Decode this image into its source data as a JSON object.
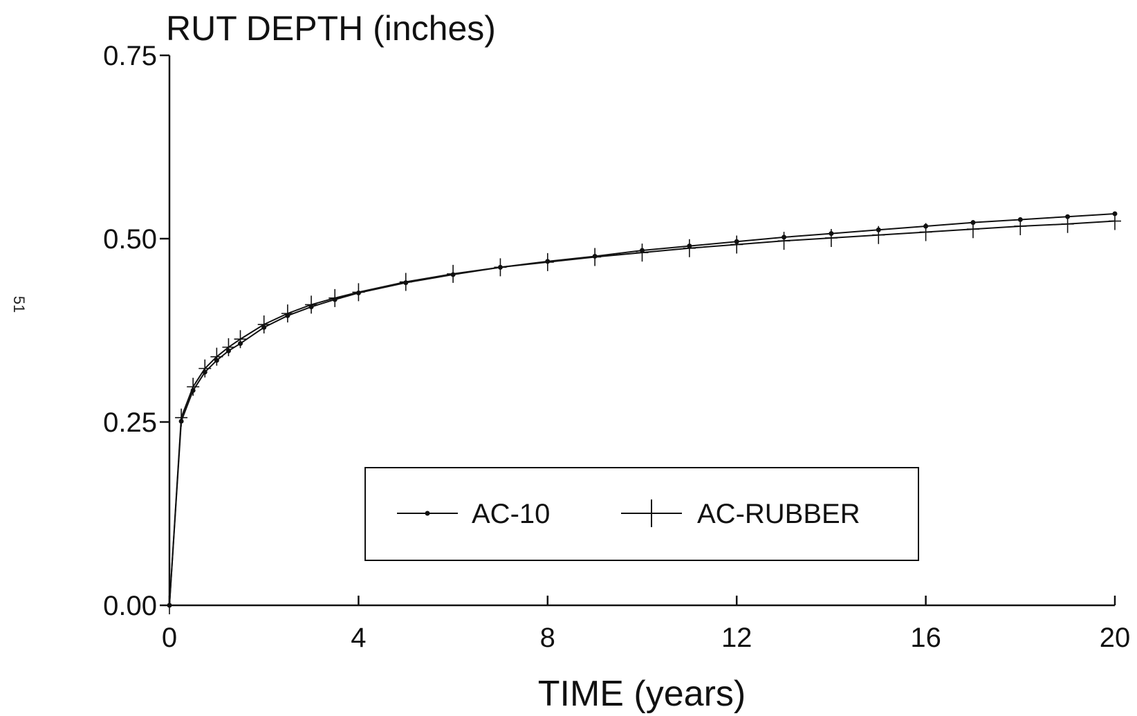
{
  "page_number": "51",
  "chart_data": {
    "type": "line",
    "title": "RUT DEPTH (inches)",
    "xlabel": "TIME (years)",
    "ylabel": "",
    "xlim": [
      0,
      20
    ],
    "ylim": [
      0,
      0.75
    ],
    "x_ticks": [
      0,
      4,
      8,
      12,
      16,
      20
    ],
    "x_tick_labels": [
      "0",
      "4",
      "8",
      "12",
      "16",
      "20"
    ],
    "y_ticks": [
      0,
      0.25,
      0.5,
      0.75
    ],
    "y_tick_labels": [
      "0.00",
      "0.25",
      "0.50",
      "0.75"
    ],
    "grid": false,
    "legend_position": "bottom-center",
    "series": [
      {
        "name": "AC-10",
        "marker": "dot",
        "color": "#111111",
        "x": [
          0,
          0.25,
          0.5,
          0.75,
          1,
          1.25,
          1.5,
          2,
          2.5,
          3,
          3.5,
          4,
          5,
          6,
          7,
          8,
          9,
          10,
          11,
          12,
          13,
          14,
          15,
          16,
          17,
          18,
          19,
          20
        ],
        "y": [
          0,
          0.251,
          0.293,
          0.318,
          0.334,
          0.347,
          0.357,
          0.379,
          0.395,
          0.407,
          0.417,
          0.426,
          0.44,
          0.451,
          0.461,
          0.469,
          0.476,
          0.484,
          0.49,
          0.496,
          0.502,
          0.507,
          0.512,
          0.517,
          0.522,
          0.526,
          0.53,
          0.534
        ]
      },
      {
        "name": "AC-RUBBER",
        "marker": "plus",
        "color": "#111111",
        "x": [
          0,
          0.25,
          0.5,
          0.75,
          1,
          1.25,
          1.5,
          2,
          2.5,
          3,
          3.5,
          4,
          5,
          6,
          7,
          8,
          9,
          10,
          11,
          12,
          13,
          14,
          15,
          16,
          17,
          18,
          19,
          20
        ],
        "y": [
          0,
          0.256,
          0.298,
          0.323,
          0.339,
          0.352,
          0.363,
          0.383,
          0.398,
          0.41,
          0.419,
          0.427,
          0.441,
          0.452,
          0.461,
          0.468,
          0.475,
          0.481,
          0.487,
          0.492,
          0.497,
          0.501,
          0.505,
          0.509,
          0.513,
          0.517,
          0.52,
          0.524
        ]
      }
    ]
  }
}
